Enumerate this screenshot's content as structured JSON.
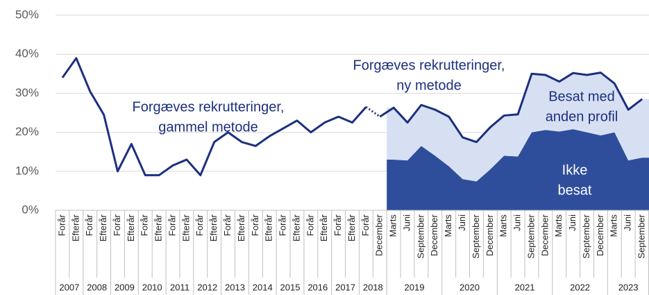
{
  "chart_data": {
    "type": "line",
    "ylim": [
      0,
      50
    ],
    "yticks": [
      {
        "value": 0,
        "label": "0%"
      },
      {
        "value": 10,
        "label": "10%"
      },
      {
        "value": 20,
        "label": "20%"
      },
      {
        "value": 30,
        "label": "30%"
      },
      {
        "value": 40,
        "label": "40%"
      },
      {
        "value": 50,
        "label": "50%"
      }
    ],
    "grid": true,
    "groups": [
      {
        "label": "2007",
        "categories": [
          "Forår",
          "Efterår"
        ]
      },
      {
        "label": "2008",
        "categories": [
          "Forår",
          "Efterår"
        ]
      },
      {
        "label": "2009",
        "categories": [
          "Forår",
          "Efterår"
        ]
      },
      {
        "label": "2010",
        "categories": [
          "Forår",
          "Efterår"
        ]
      },
      {
        "label": "2011",
        "categories": [
          "Forår",
          "Efterår"
        ]
      },
      {
        "label": "2012",
        "categories": [
          "Forår",
          "Efterår"
        ]
      },
      {
        "label": "2013",
        "categories": [
          "Forår",
          "Efterår"
        ]
      },
      {
        "label": "2014",
        "categories": [
          "Forår",
          "Efterår"
        ]
      },
      {
        "label": "2015",
        "categories": [
          "Forår",
          "Efterår"
        ]
      },
      {
        "label": "2016",
        "categories": [
          "Forår",
          "Efterår"
        ]
      },
      {
        "label": "2017",
        "categories": [
          "Forår",
          "Efterår"
        ]
      },
      {
        "label": "2018",
        "categories": [
          "Forår",
          "December"
        ]
      },
      {
        "label": "2019",
        "categories": [
          "Marts",
          "Juni",
          "September",
          "December"
        ]
      },
      {
        "label": "2020",
        "categories": [
          "Marts",
          "Juni",
          "September",
          "December"
        ]
      },
      {
        "label": "2021",
        "categories": [
          "Marts",
          "Juni",
          "September",
          "December"
        ]
      },
      {
        "label": "2022",
        "categories": [
          "Marts",
          "Juni",
          "September",
          "December"
        ]
      },
      {
        "label": "2023",
        "categories": [
          "Marts",
          "Juni",
          "September"
        ]
      }
    ],
    "series": [
      {
        "kind": "line",
        "color": "#1c2f7f",
        "values": [
          34,
          39,
          30.5,
          24.5,
          10,
          17,
          9,
          9,
          11.5,
          13,
          9,
          17.5,
          20,
          17.5,
          16.5,
          19,
          21,
          23,
          20,
          22.5,
          24,
          22.5,
          26.5,
          null,
          null,
          null,
          null,
          null,
          null,
          null,
          null,
          null,
          null,
          null,
          null,
          null,
          null,
          null,
          null,
          null,
          null,
          null,
          null
        ]
      },
      {
        "kind": "line",
        "color": "#1c2f7f",
        "values": [
          null,
          null,
          null,
          null,
          null,
          null,
          null,
          null,
          null,
          null,
          null,
          null,
          null,
          null,
          null,
          null,
          null,
          null,
          null,
          null,
          null,
          null,
          null,
          24,
          26.3,
          22.5,
          27,
          25.8,
          24,
          18.7,
          17.5,
          21.3,
          24.3,
          24.6,
          35,
          34.7,
          33,
          35.2,
          34.7,
          35.3,
          32.5,
          25.8,
          28.5
        ]
      },
      {
        "kind": "area",
        "color": "#2e4e9c",
        "values": [
          null,
          null,
          null,
          null,
          null,
          null,
          null,
          null,
          null,
          null,
          null,
          null,
          null,
          null,
          null,
          null,
          null,
          null,
          null,
          null,
          null,
          null,
          null,
          null,
          13,
          12.8,
          16.5,
          14,
          11.3,
          8,
          7.4,
          10.5,
          14,
          13.8,
          20,
          20.6,
          20.2,
          20.8,
          20,
          19.2,
          20,
          12.8,
          13.5
        ]
      },
      {
        "kind": "area",
        "color": "#d7e0f3",
        "values": [
          null,
          null,
          null,
          null,
          null,
          null,
          null,
          null,
          null,
          null,
          null,
          null,
          null,
          null,
          null,
          null,
          null,
          null,
          null,
          null,
          null,
          null,
          null,
          null,
          13.3,
          9.7,
          10.5,
          11.8,
          12.7,
          10.7,
          10.1,
          10.8,
          10.3,
          10.8,
          15,
          14.1,
          12.8,
          14.4,
          14.7,
          16.1,
          12.5,
          13,
          15
        ]
      }
    ],
    "annotations": [
      {
        "lines": [
          "Forgæves rekrutteringer,",
          "gammel metode"
        ],
        "color": "#1c2f7f"
      },
      {
        "lines": [
          "Forgæves rekrutteringer,",
          "ny metode"
        ],
        "color": "#1c2f7f"
      },
      {
        "lines": [
          "Besat med",
          "anden profil"
        ],
        "color": "#1c2f7f"
      },
      {
        "lines": [
          "Ikke",
          "besat"
        ],
        "color": "#ffffff"
      }
    ]
  }
}
